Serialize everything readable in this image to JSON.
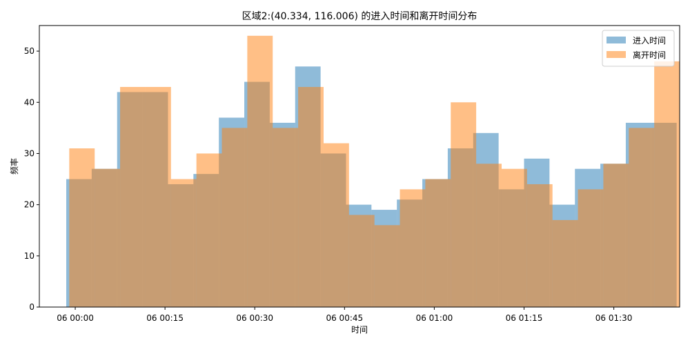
{
  "chart_data": {
    "type": "histogram",
    "title": "区域2:(40.334, 116.006) 的进入时间和离开时间分布",
    "xlabel": "时间",
    "ylabel": "频率",
    "ylim": [
      0,
      55
    ],
    "yticks": [
      0,
      10,
      20,
      30,
      40,
      50
    ],
    "xlim": [
      "06 23:54:00",
      "07 01:41:00"
    ],
    "xticks": [
      {
        "t": "07 00:00:00",
        "label": "06 00:00"
      },
      {
        "t": "07 00:15:00",
        "label": "06 00:15"
      },
      {
        "t": "07 00:30:00",
        "label": "06 00:30"
      },
      {
        "t": "07 00:45:00",
        "label": "06 00:45"
      },
      {
        "t": "07 01:00:00",
        "label": "06 01:00"
      },
      {
        "t": "07 01:15:00",
        "label": "06 01:15"
      },
      {
        "t": "07 01:30:00",
        "label": "06 01:30"
      }
    ],
    "grid": false,
    "legend_position": "top-right",
    "series": [
      {
        "name": "进入时间",
        "color": "#1f77b4",
        "opacity": 0.5,
        "bin_edges": [
          "06 23:58:30",
          "07 00:02:45",
          "07 00:07:00",
          "07 00:11:15",
          "07 00:15:30",
          "07 00:19:45",
          "07 00:24:00",
          "07 00:28:15",
          "07 00:32:30",
          "07 00:36:45",
          "07 00:41:00",
          "07 00:45:15",
          "07 00:49:30",
          "07 00:53:45",
          "07 00:58:00",
          "07 01:02:15",
          "07 01:06:30",
          "07 01:10:45",
          "07 01:15:00",
          "07 01:19:15",
          "07 01:23:30",
          "07 01:27:45",
          "07 01:32:00",
          "07 01:36:15",
          "07 01:40:30"
        ],
        "values": [
          25,
          27,
          42,
          42,
          24,
          26,
          37,
          44,
          36,
          47,
          30,
          20,
          19,
          21,
          25,
          31,
          34,
          23,
          29,
          20,
          27,
          28,
          36,
          36
        ]
      },
      {
        "name": "离开时间",
        "color": "#ff7f0e",
        "opacity": 0.5,
        "bin_edges": [
          "06 23:59:00",
          "07 00:03:15",
          "07 00:07:30",
          "07 00:11:45",
          "07 00:16:00",
          "07 00:20:15",
          "07 00:24:30",
          "07 00:28:45",
          "07 00:33:00",
          "07 00:37:15",
          "07 00:41:30",
          "07 00:45:45",
          "07 00:50:00",
          "07 00:54:15",
          "07 00:58:30",
          "07 01:02:45",
          "07 01:07:00",
          "07 01:11:15",
          "07 01:15:30",
          "07 01:19:45",
          "07 01:24:00",
          "07 01:28:15",
          "07 01:32:30",
          "07 01:36:45",
          "07 01:41:00"
        ],
        "values": [
          31,
          27,
          43,
          43,
          25,
          30,
          35,
          53,
          35,
          43,
          32,
          18,
          16,
          23,
          25,
          40,
          28,
          27,
          24,
          17,
          23,
          28,
          35,
          48
        ]
      }
    ]
  }
}
